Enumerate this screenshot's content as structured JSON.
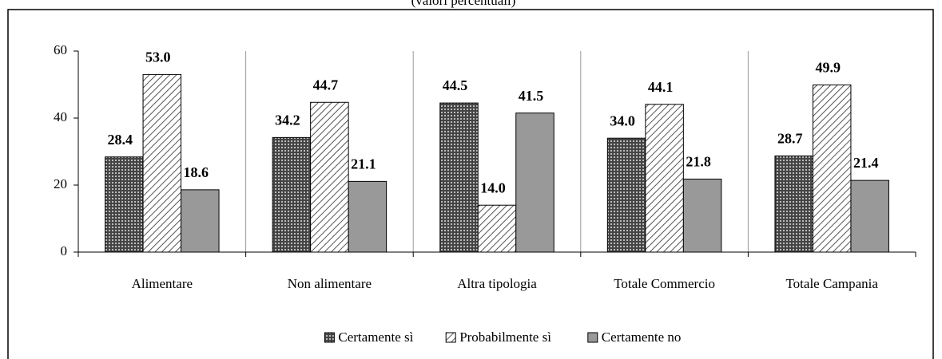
{
  "chart_data": {
    "type": "bar",
    "subtitle": "(valori percentuali)",
    "categories": [
      "Alimentare",
      "Non alimentare",
      "Altra tipologia",
      "Totale Commercio",
      "Totale Campania"
    ],
    "series": [
      {
        "name": "Certamente sì",
        "color": "#444444",
        "pattern": "dots",
        "values": [
          28.4,
          34.2,
          44.5,
          34.0,
          28.7
        ],
        "value_labels": [
          "28.4",
          "34.2",
          "44.5",
          "34.0",
          "28.7"
        ]
      },
      {
        "name": "Probabilmente sì",
        "color": "#555555",
        "pattern": "hatch",
        "values": [
          53.0,
          44.7,
          14.0,
          44.1,
          49.9
        ],
        "value_labels": [
          "53.0",
          "44.7",
          "14.0",
          "44.1",
          "49.9"
        ]
      },
      {
        "name": "Certamente no",
        "color": "#999999",
        "pattern": "solid",
        "values": [
          18.6,
          21.1,
          41.5,
          21.8,
          21.4
        ],
        "value_labels": [
          "18.6",
          "21.1",
          "41.5",
          "21.8",
          "21.4"
        ]
      }
    ],
    "ylim": [
      0,
      60
    ],
    "yticks": [
      0,
      20,
      40,
      60
    ],
    "legend": "bottom"
  }
}
